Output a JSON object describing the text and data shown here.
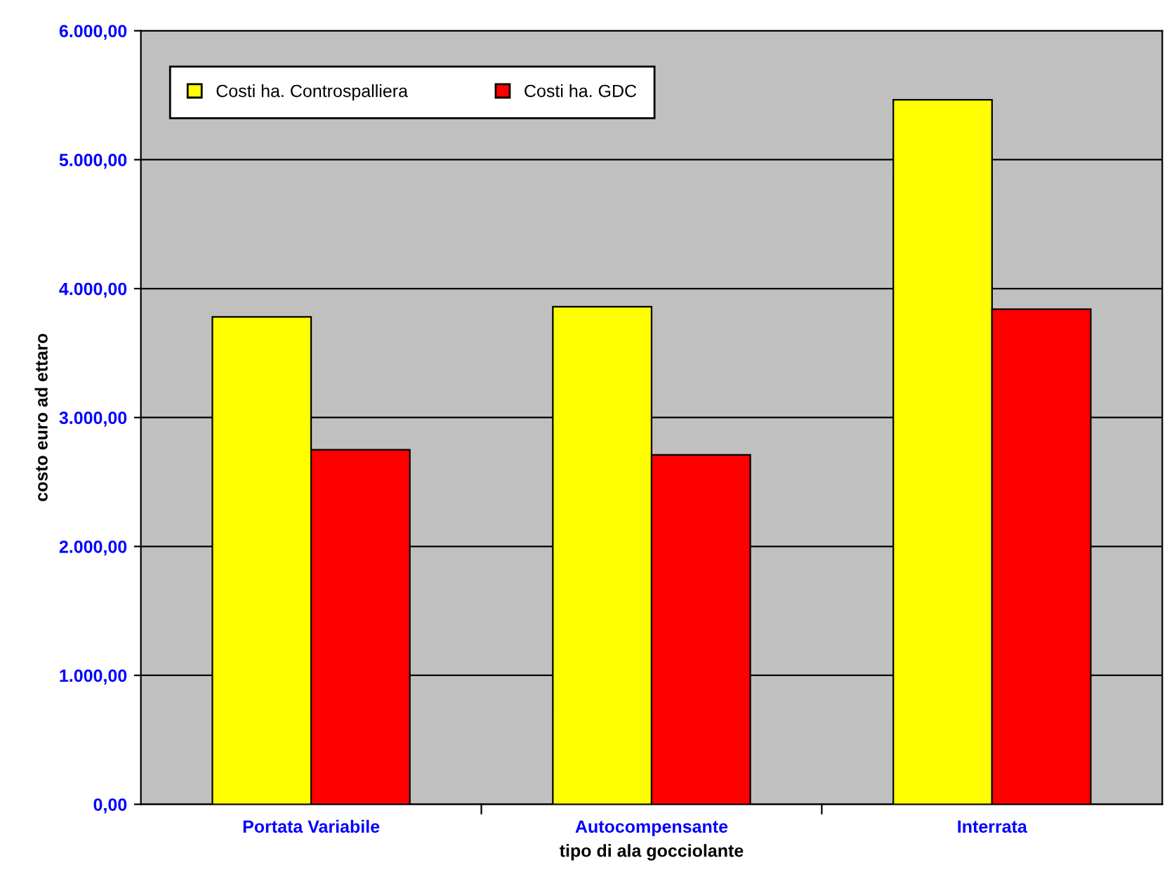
{
  "chart_data": {
    "type": "bar",
    "xlabel": "tipo di ala gocciolante",
    "ylabel": "costo euro ad ettaro",
    "categories": [
      "Portata Variabile",
      "Autocompensante",
      "Interrata"
    ],
    "series": [
      {
        "name": "Costi ha. Controspalliera",
        "color": "#ffff00",
        "values": [
          3780,
          3860,
          5465
        ]
      },
      {
        "name": "Costi ha. GDC",
        "color": "#ff0000",
        "values": [
          2750,
          2710,
          3840
        ]
      }
    ],
    "ylim": [
      0,
      6000
    ],
    "yticks": [
      {
        "value": 0,
        "label": "0,00"
      },
      {
        "value": 1000,
        "label": "1.000,00"
      },
      {
        "value": 2000,
        "label": "2.000,00"
      },
      {
        "value": 3000,
        "label": "3.000,00"
      },
      {
        "value": 4000,
        "label": "4.000,00"
      },
      {
        "value": 5000,
        "label": "5.000,00"
      },
      {
        "value": 6000,
        "label": "6.000,00"
      }
    ],
    "grid": "y",
    "legend": "top left"
  }
}
